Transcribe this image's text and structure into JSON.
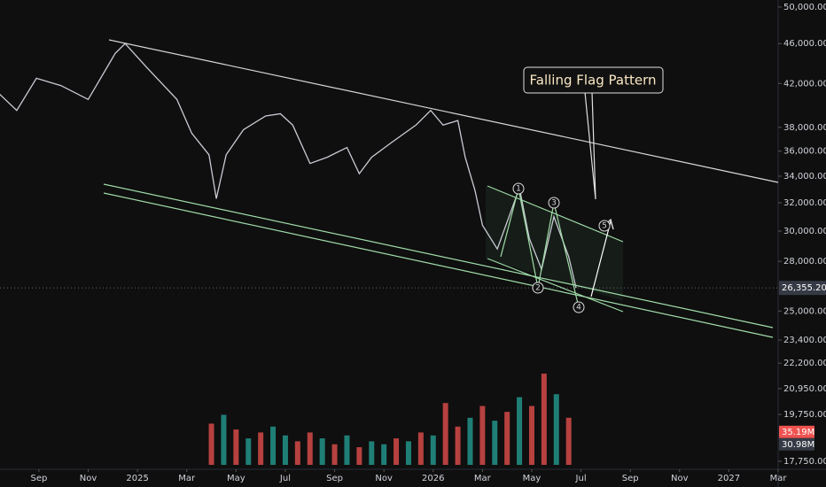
{
  "chart_data": {
    "type": "line",
    "annotation": "Falling Flag Pattern",
    "wave_labels": [
      "1",
      "2",
      "3",
      "4",
      "5"
    ],
    "color": "#c9ccd4",
    "log_scale": true,
    "x": [
      -5.6,
      -4.9,
      -4.1,
      -3.1,
      -2.0,
      -0.9,
      -0.5,
      0.4,
      1.6,
      2.2,
      2.9,
      3.2,
      3.6,
      4.3,
      5.2,
      5.8,
      6.3,
      7.0,
      7.7,
      8.5,
      9.0,
      9.5,
      10.3,
      11.3,
      11.9,
      12.4,
      13.0,
      13.3,
      13.7,
      14.0,
      14.6,
      15.5,
      15.9,
      16.4,
      16.9,
      17.5,
      17.8
    ],
    "values": [
      41000,
      39500,
      42500,
      41800,
      40500,
      45000,
      46000,
      43500,
      40500,
      37500,
      35700,
      32300,
      35700,
      37800,
      39000,
      39200,
      38200,
      35000,
      35500,
      36300,
      34200,
      35500,
      36700,
      38200,
      39500,
      38200,
      38600,
      35500,
      32900,
      30400,
      28800,
      33100,
      29500,
      27500,
      31000,
      28300,
      26355.2
    ],
    "last_price": {
      "value": 26355.2,
      "label": "26,355.20"
    },
    "xlim": [
      -5.58,
      26.0
    ],
    "xticks": [
      {
        "value": -4,
        "label": "Sep"
      },
      {
        "value": -2,
        "label": "Nov"
      },
      {
        "value": 0,
        "label": "2025"
      },
      {
        "value": 2,
        "label": "Mar"
      },
      {
        "value": 4,
        "label": "May"
      },
      {
        "value": 6,
        "label": "Jul"
      },
      {
        "value": 8,
        "label": "Sep"
      },
      {
        "value": 10,
        "label": "Nov"
      },
      {
        "value": 12,
        "label": "2026"
      },
      {
        "value": 14,
        "label": "Mar"
      },
      {
        "value": 16,
        "label": "May"
      },
      {
        "value": 18,
        "label": "Jul"
      },
      {
        "value": 20,
        "label": "Sep"
      },
      {
        "value": 22,
        "label": "Nov"
      },
      {
        "value": 24,
        "label": "2027"
      },
      {
        "value": 26,
        "label": "Mar"
      }
    ],
    "ylim": [
      17500,
      50500
    ],
    "yticks": [
      {
        "value": 50000,
        "label": "50,000.00"
      },
      {
        "value": 46000,
        "label": "46,000.00"
      },
      {
        "value": 42000,
        "label": "42,000.00"
      },
      {
        "value": 38000,
        "label": "38,000.00"
      },
      {
        "value": 36000,
        "label": "36,000.00"
      },
      {
        "value": 34000,
        "label": "34,000.00"
      },
      {
        "value": 32000,
        "label": "32,000.00"
      },
      {
        "value": 30000,
        "label": "30,000.00"
      },
      {
        "value": 28000,
        "label": "28,000.00"
      },
      {
        "value": 25000,
        "label": "25,000.00"
      },
      {
        "value": 23400,
        "label": "23,400.00"
      },
      {
        "value": 22200,
        "label": "22,200.00"
      },
      {
        "value": 20950,
        "label": "20,950.00"
      },
      {
        "value": 19750,
        "label": "19,750.00"
      },
      {
        "value": 17750,
        "label": "17,750.00"
      }
    ],
    "volume": {
      "axis": "y2",
      "x": [
        3.0,
        3.5,
        4.0,
        4.5,
        5.0,
        5.5,
        6.0,
        6.5,
        7.0,
        7.5,
        8.0,
        8.5,
        9.0,
        9.5,
        10.0,
        10.5,
        11.0,
        11.5,
        12.0,
        12.5,
        13.0,
        13.5,
        14.0,
        14.5,
        15.0,
        15.5,
        16.0,
        16.5,
        17.0,
        17.5
      ],
      "values": [
        38,
        41,
        36,
        33,
        35,
        37,
        34,
        32,
        35,
        33,
        31,
        34,
        30,
        32,
        31,
        33,
        32,
        35,
        34,
        45,
        37,
        40,
        44,
        39,
        42,
        47,
        44,
        55,
        48,
        40
      ],
      "colors": [
        "#ef5350",
        "#26a69a",
        "#ef5350",
        "#26a69a",
        "#ef5350",
        "#26a69a",
        "#26a69a",
        "#ef5350",
        "#ef5350",
        "#26a69a",
        "#ef5350",
        "#26a69a",
        "#ef5350",
        "#26a69a",
        "#26a69a",
        "#ef5350",
        "#26a69a",
        "#ef5350",
        "#26a69a",
        "#ef5350",
        "#ef5350",
        "#26a69a",
        "#ef5350",
        "#26a69a",
        "#ef5350",
        "#26a69a",
        "#ef5350",
        "#ef5350",
        "#26a69a",
        "#ef5350"
      ]
    },
    "volume_labels": [
      {
        "value": 35.19,
        "label": "35.19M",
        "color": "#ef5350"
      },
      {
        "value": 30.98,
        "label": "30.98M",
        "color": "#363a45"
      }
    ],
    "y2lim": [
      24,
      64
    ]
  }
}
